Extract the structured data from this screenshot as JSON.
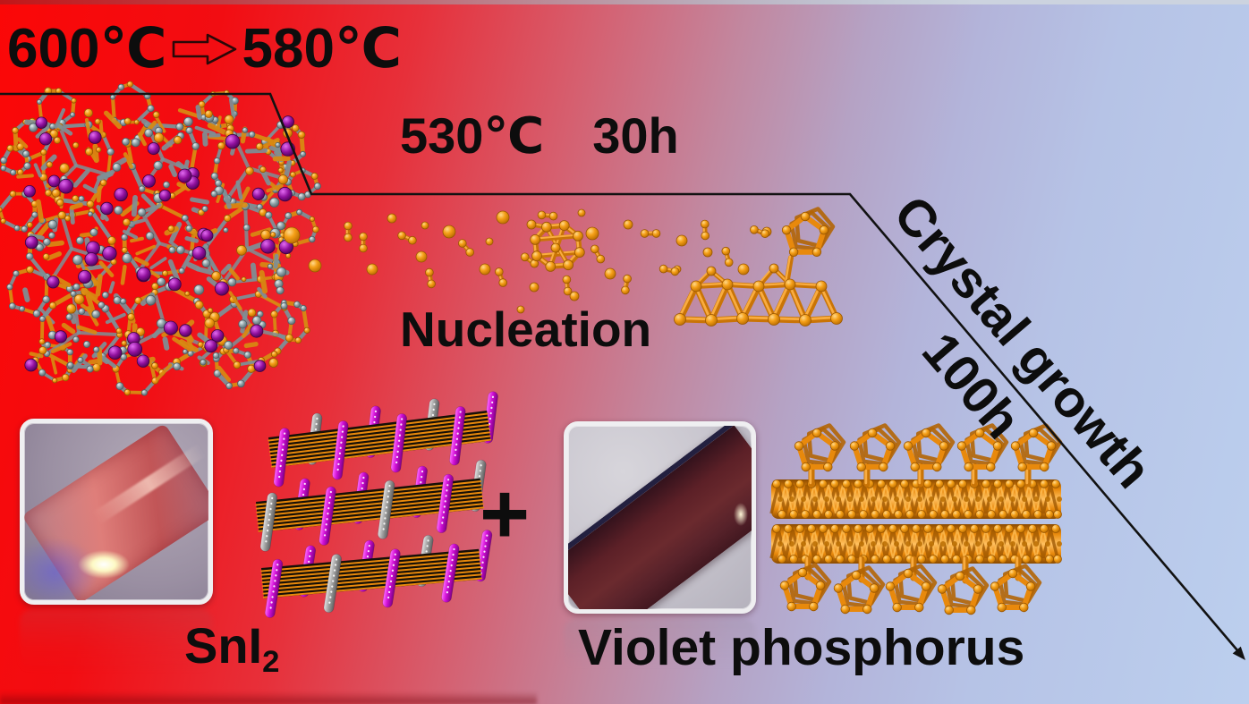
{
  "page": {
    "title": "Violet phosphorus crystal growth graphical abstract"
  },
  "process": {
    "temp_start": "600℃",
    "temp_end": "580℃",
    "step_temp": "530℃",
    "step_time": "30h",
    "nucleation_label": "Nucleation",
    "growth_label": "Crystal growth",
    "growth_time": "100h",
    "plus_sign": "+",
    "reactant_formula_base": "SnI",
    "reactant_formula_subscript": "2",
    "product_label": "Violet phosphorus"
  },
  "icons": {
    "temp_transition_arrow": "hollow-right-arrow",
    "flow_line": "stepped-descending-arrow"
  },
  "colors": {
    "background_left": "#f70808",
    "background_right": "#bdd0ee",
    "text": "#0d0d0d",
    "phosphorus_orange": "#ef940f",
    "phosphorus_orange_dark": "#a85a00",
    "bond_orange": "#c97406",
    "bond_highlight": "#ffb347",
    "iodine_magenta": "#d619d6",
    "tin_gray": "#9b9b9b",
    "precursor_slate": "#7e9096",
    "precursor_orange": "#d88a12",
    "precursor_purple": "#90109d",
    "line_black": "#121212"
  }
}
